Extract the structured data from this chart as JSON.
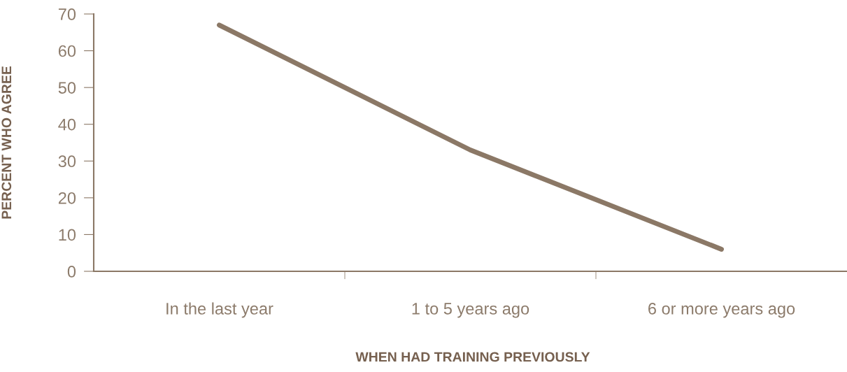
{
  "chart_data": {
    "type": "line",
    "xlabel": "WHEN HAD TRAINING PREVIOUSLY",
    "ylabel": "PERCENT WHO AGREE",
    "categories": [
      "In the last year",
      "1 to 5 years ago",
      "6 or more years ago"
    ],
    "series": [
      {
        "color": "#8b7866",
        "values": [
          67,
          33,
          6
        ]
      }
    ],
    "ylim": [
      0,
      70
    ],
    "yticks": [
      0,
      10,
      20,
      30,
      40,
      50,
      60,
      70
    ],
    "grid": false,
    "legend": false,
    "marker": "none",
    "line_style": "solid"
  }
}
